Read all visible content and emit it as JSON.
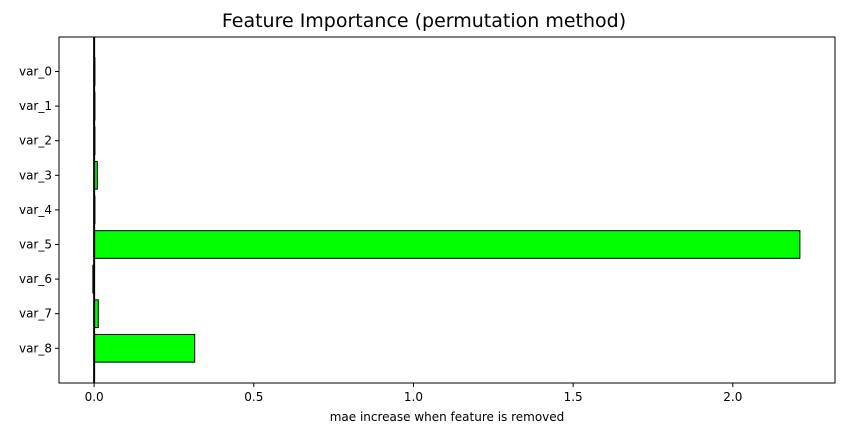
{
  "chart_data": {
    "type": "bar",
    "orientation": "horizontal",
    "title": "Feature Importance (permutation method)",
    "xlabel": "mae increase when feature is removed",
    "ylabel": "",
    "categories": [
      "var_0",
      "var_1",
      "var_2",
      "var_3",
      "var_4",
      "var_5",
      "var_6",
      "var_7",
      "var_8"
    ],
    "values": [
      0.002,
      0.002,
      0.001,
      0.01,
      0.001,
      2.21,
      -0.004,
      0.013,
      0.315
    ],
    "xlim": [
      -0.11,
      2.32
    ],
    "xticks": [
      0.0,
      0.5,
      1.0,
      1.5,
      2.0
    ],
    "xtick_labels": [
      "0.0",
      "0.5",
      "1.0",
      "1.5",
      "2.0"
    ],
    "grid": false,
    "reference_line_at": 0,
    "colors": {
      "bar_fill": "#00ff00",
      "bar_edge": "#000000",
      "zero_line": "#000000",
      "axes": "#000000"
    }
  }
}
